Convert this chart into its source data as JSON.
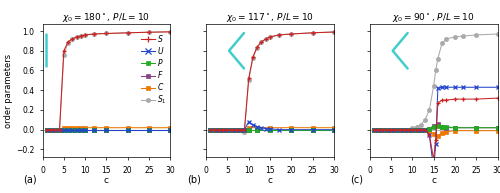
{
  "titles": [
    "$\\chi_0 = 180^\\circ$, $P/L = 10$",
    "$\\chi_0 = 117^\\circ$, $P/L = 10$",
    "$\\chi_0 = 90^\\circ$, $P/L = 10$"
  ],
  "panel_labels": [
    "(a)",
    "(b)",
    "(c)"
  ],
  "xlabel": "c",
  "ylabel": "order parameters",
  "ylim": [
    -0.28,
    1.07
  ],
  "xlim": [
    0,
    30
  ],
  "xticks": [
    0,
    5,
    10,
    15,
    20,
    25,
    30
  ],
  "yticks": [
    -0.2,
    0.0,
    0.2,
    0.4,
    0.6,
    0.8,
    1.0
  ],
  "colors": {
    "S": "#cc2222",
    "U": "#2244cc",
    "P": "#22aa22",
    "F": "#884488",
    "C": "#ee7700",
    "S1": "#aaaaaa"
  },
  "boomerang_color": "#44cccc",
  "panel_a": {
    "S": {
      "c": [
        1,
        2,
        3,
        4,
        5,
        6,
        7,
        8,
        9,
        10,
        12,
        15,
        20,
        25,
        30
      ],
      "v": [
        0.0,
        0.0,
        0.0,
        0.0,
        0.8,
        0.89,
        0.92,
        0.94,
        0.95,
        0.96,
        0.97,
        0.975,
        0.982,
        0.988,
        0.992
      ]
    },
    "U": {
      "c": [
        1,
        2,
        3,
        4,
        5,
        6,
        7,
        8,
        9,
        10,
        12,
        15,
        20,
        25,
        30
      ],
      "v": [
        0.0,
        0.0,
        0.0,
        0.0,
        0.0,
        0.0,
        0.0,
        0.0,
        0.0,
        0.0,
        0.0,
        0.0,
        0.0,
        0.0,
        0.0
      ]
    },
    "P": {
      "c": [
        1,
        2,
        3,
        4,
        5,
        6,
        7,
        8,
        9,
        10,
        12,
        15,
        20,
        25,
        30
      ],
      "v": [
        0.0,
        0.0,
        0.0,
        0.0,
        0.0,
        0.0,
        0.0,
        0.0,
        0.0,
        0.0,
        0.0,
        0.0,
        0.0,
        0.0,
        0.0
      ]
    },
    "F": {
      "c": [
        1,
        2,
        3,
        4,
        5,
        6,
        7,
        8,
        9,
        10,
        12,
        15,
        20,
        25,
        30
      ],
      "v": [
        0.0,
        0.0,
        0.0,
        0.0,
        0.0,
        0.0,
        0.0,
        0.0,
        0.0,
        0.0,
        0.0,
        0.0,
        0.0,
        0.0,
        0.0
      ]
    },
    "C": {
      "c": [
        1,
        2,
        3,
        4,
        5,
        6,
        7,
        8,
        9,
        10,
        12,
        15,
        20,
        25,
        30
      ],
      "v": [
        0.0,
        0.0,
        0.0,
        0.0,
        0.02,
        0.02,
        0.02,
        0.02,
        0.02,
        0.02,
        0.02,
        0.02,
        0.02,
        0.02,
        0.02
      ]
    },
    "S1": {
      "c": [
        1,
        2,
        3,
        4,
        5,
        6,
        7,
        8,
        9,
        10,
        12,
        15,
        20,
        25,
        30
      ],
      "v": [
        0.0,
        0.0,
        0.0,
        0.0,
        0.76,
        0.88,
        0.92,
        0.94,
        0.95,
        0.96,
        0.97,
        0.975,
        0.982,
        0.988,
        0.992
      ]
    }
  },
  "panel_b": {
    "S": {
      "c": [
        1,
        2,
        3,
        4,
        5,
        6,
        7,
        8,
        9,
        10,
        11,
        12,
        13,
        14,
        15,
        17,
        20,
        25,
        30
      ],
      "v": [
        0.0,
        0.0,
        0.0,
        0.0,
        0.0,
        0.0,
        0.0,
        0.0,
        0.0,
        0.52,
        0.74,
        0.84,
        0.89,
        0.92,
        0.94,
        0.96,
        0.97,
        0.982,
        0.99
      ]
    },
    "U": {
      "c": [
        1,
        2,
        3,
        4,
        5,
        6,
        7,
        8,
        9,
        10,
        11,
        12,
        13,
        14,
        15,
        17,
        20,
        25,
        30
      ],
      "v": [
        0.0,
        0.0,
        0.0,
        0.0,
        0.0,
        0.0,
        0.0,
        0.0,
        0.0,
        0.08,
        0.05,
        0.03,
        0.02,
        0.01,
        0.01,
        0.0,
        0.0,
        0.0,
        0.0
      ]
    },
    "P": {
      "c": [
        1,
        2,
        3,
        4,
        5,
        6,
        7,
        8,
        9,
        10,
        12,
        15,
        20,
        25,
        30
      ],
      "v": [
        0.0,
        0.0,
        0.0,
        0.0,
        0.0,
        0.0,
        0.0,
        0.0,
        0.0,
        0.0,
        0.0,
        0.0,
        0.0,
        0.0,
        0.0
      ]
    },
    "F": {
      "c": [
        1,
        2,
        3,
        4,
        5,
        6,
        7,
        8,
        9,
        10,
        12,
        15,
        20,
        25,
        30
      ],
      "v": [
        0.0,
        0.0,
        0.0,
        0.0,
        0.0,
        0.0,
        0.0,
        0.0,
        0.0,
        0.0,
        0.0,
        0.0,
        0.0,
        0.0,
        0.0
      ]
    },
    "C": {
      "c": [
        1,
        2,
        3,
        4,
        5,
        6,
        7,
        8,
        9,
        10,
        12,
        15,
        20,
        25,
        30
      ],
      "v": [
        0.0,
        0.0,
        0.0,
        0.0,
        0.0,
        0.0,
        0.0,
        0.0,
        0.0,
        0.02,
        0.02,
        0.02,
        0.02,
        0.02,
        0.02
      ]
    },
    "S1": {
      "c": [
        1,
        2,
        3,
        4,
        5,
        6,
        7,
        8,
        9,
        10,
        11,
        12,
        13,
        14,
        15,
        17,
        20,
        25,
        30
      ],
      "v": [
        0.0,
        0.0,
        0.0,
        0.0,
        0.0,
        0.0,
        0.0,
        0.0,
        -0.02,
        0.5,
        0.73,
        0.83,
        0.89,
        0.92,
        0.94,
        0.96,
        0.97,
        0.982,
        0.99
      ]
    }
  },
  "panel_c": {
    "S": {
      "c": [
        1,
        2,
        3,
        4,
        5,
        6,
        7,
        8,
        9,
        10,
        11,
        12,
        13,
        14,
        15,
        15.5,
        16,
        17,
        18,
        20,
        22,
        25,
        30
      ],
      "v": [
        0.0,
        0.0,
        0.0,
        0.0,
        0.0,
        0.0,
        0.0,
        0.0,
        0.0,
        0.0,
        0.0,
        0.0,
        0.0,
        -0.05,
        -0.3,
        -0.1,
        0.27,
        0.3,
        0.3,
        0.31,
        0.31,
        0.31,
        0.32
      ]
    },
    "U": {
      "c": [
        1,
        2,
        3,
        4,
        5,
        6,
        7,
        8,
        9,
        10,
        11,
        12,
        13,
        14,
        15,
        15.5,
        16,
        17,
        18,
        20,
        22,
        25,
        30
      ],
      "v": [
        0.0,
        0.0,
        0.0,
        0.0,
        0.0,
        0.0,
        0.0,
        0.0,
        0.0,
        0.0,
        0.0,
        0.0,
        0.0,
        -0.05,
        -0.4,
        -0.15,
        0.42,
        0.43,
        0.43,
        0.43,
        0.43,
        0.43,
        0.43
      ]
    },
    "P": {
      "c": [
        1,
        2,
        3,
        4,
        5,
        6,
        7,
        8,
        9,
        10,
        11,
        12,
        13,
        14,
        15,
        16,
        17,
        18,
        20,
        25,
        30
      ],
      "v": [
        0.0,
        0.0,
        0.0,
        0.0,
        0.0,
        0.0,
        0.0,
        0.0,
        0.0,
        0.0,
        0.0,
        0.0,
        0.0,
        0.01,
        0.03,
        0.04,
        0.03,
        0.03,
        0.02,
        0.02,
        0.02
      ]
    },
    "F": {
      "c": [
        1,
        2,
        3,
        4,
        5,
        6,
        7,
        8,
        9,
        10,
        11,
        12,
        13,
        14,
        15,
        16,
        17,
        18,
        20,
        25,
        30
      ],
      "v": [
        0.0,
        0.0,
        0.0,
        0.0,
        0.0,
        0.0,
        0.0,
        0.0,
        0.0,
        0.0,
        0.0,
        0.0,
        0.0,
        0.01,
        0.04,
        0.06,
        0.03,
        0.02,
        0.02,
        0.02,
        0.02
      ]
    },
    "C": {
      "c": [
        1,
        2,
        3,
        4,
        5,
        6,
        7,
        8,
        9,
        10,
        11,
        12,
        13,
        14,
        15,
        16,
        17,
        18,
        20,
        25,
        30
      ],
      "v": [
        0.0,
        0.0,
        0.0,
        0.0,
        0.0,
        0.0,
        0.0,
        0.0,
        0.0,
        0.0,
        0.0,
        0.0,
        0.0,
        -0.01,
        -0.04,
        -0.06,
        -0.03,
        -0.02,
        -0.01,
        -0.01,
        -0.01
      ]
    },
    "S1": {
      "c": [
        1,
        2,
        3,
        4,
        5,
        6,
        7,
        8,
        9,
        10,
        11,
        12,
        13,
        14,
        15,
        15.5,
        16,
        17,
        18,
        20,
        22,
        25,
        30
      ],
      "v": [
        0.0,
        0.0,
        0.0,
        0.0,
        0.0,
        0.0,
        0.0,
        0.0,
        0.0,
        0.02,
        0.03,
        0.05,
        0.1,
        0.2,
        0.44,
        0.6,
        0.72,
        0.88,
        0.92,
        0.94,
        0.95,
        0.96,
        0.97
      ]
    }
  }
}
